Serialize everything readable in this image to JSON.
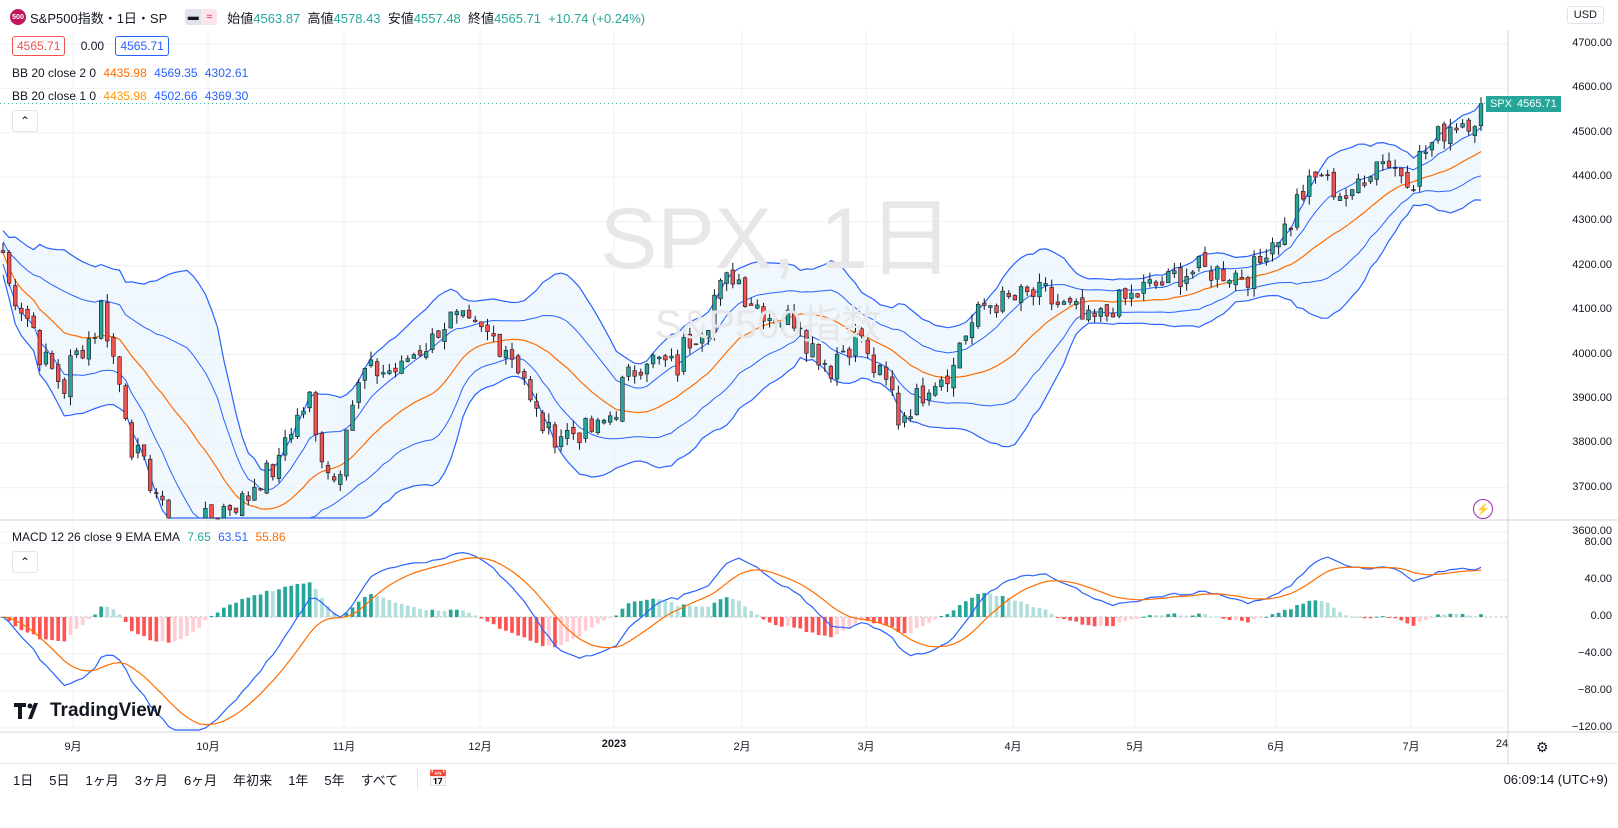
{
  "header": {
    "symbol_badge": "500",
    "title": "S&P500指数・1日・SP",
    "ohlc": {
      "open_label": "始値",
      "open": "4563.87",
      "high_label": "高値",
      "high": "4578.43",
      "low_label": "安値",
      "low": "4557.48",
      "close_label": "終値",
      "close": "4565.71",
      "change": "+10.74 (+0.24%)"
    }
  },
  "order_row": {
    "sell": "4565.71",
    "spread": "0.00",
    "buy": "4565.71"
  },
  "indicators": {
    "bb2": {
      "label": "BB 20 close 2 0",
      "basis": "4435.98",
      "upper": "4569.35",
      "lower": "4302.61"
    },
    "bb1": {
      "label": "BB 20 close 1 0",
      "basis": "4435.98",
      "upper": "4502.66",
      "lower": "4369.30"
    },
    "macd": {
      "label": "MACD 12 26 close 9 EMA EMA",
      "hist": "7.65",
      "macd": "63.51",
      "signal": "55.86"
    }
  },
  "watermark": {
    "main": "SPX, 1日",
    "sub": "S&P500指数"
  },
  "price_axis": {
    "currency": "USD",
    "labels": [
      "4700.00",
      "4600.00",
      "4500.00",
      "4400.00",
      "4300.00",
      "4200.00",
      "4100.00",
      "4000.00",
      "3900.00",
      "3800.00",
      "3700.00",
      "3600.00"
    ],
    "last_price_symbol": "SPX",
    "last_price": "4565.71"
  },
  "macd_axis": {
    "labels": [
      "80.00",
      "40.00",
      "0.00",
      "−40.00",
      "−80.00",
      "−120.00"
    ]
  },
  "time_axis": {
    "labels": [
      "9月",
      "10月",
      "11月",
      "12月",
      "2023",
      "2月",
      "3月",
      "4月",
      "5月",
      "6月",
      "7月",
      "24"
    ]
  },
  "bottom_bar": {
    "ranges": [
      "1日",
      "5日",
      "1ヶ月",
      "3ヶ月",
      "6ヶ月",
      "年初来",
      "1年",
      "5年",
      "すべて"
    ],
    "clock": "06:09:14 (UTC+9)"
  },
  "brand": "TradingView",
  "colors": {
    "up": "#26a69a",
    "down": "#ef5350",
    "bb_band": "#2962ff",
    "bb_basis": "#ff6d00",
    "bb1_basis": "#ff9800",
    "band_fill": "#e3f2fd"
  },
  "chart_data": {
    "type": "candlestick",
    "x_dates": [
      "9月",
      "10月",
      "11月",
      "12月",
      "2023",
      "2月",
      "3月",
      "4月",
      "5月",
      "6月",
      "7月"
    ],
    "close_anchors": [
      [
        "2022-08-19",
        4230
      ],
      [
        "2022-08-26",
        4060
      ],
      [
        "2022-09-02",
        3925
      ],
      [
        "2022-09-12",
        4110
      ],
      [
        "2022-09-16",
        3875
      ],
      [
        "2022-09-23",
        3690
      ],
      [
        "2022-09-30",
        3585
      ],
      [
        "2022-10-07",
        3640
      ],
      [
        "2022-10-13",
        3670
      ],
      [
        "2022-10-21",
        3750
      ],
      [
        "2022-10-28",
        3900
      ],
      [
        "2022-11-03",
        3720
      ],
      [
        "2022-11-10",
        3960
      ],
      [
        "2022-11-18",
        3965
      ],
      [
        "2022-11-30",
        4080
      ],
      [
        "2022-12-13",
        4020
      ],
      [
        "2022-12-22",
        3820
      ],
      [
        "2023-01-03",
        3830
      ],
      [
        "2023-01-13",
        3999
      ],
      [
        "2023-01-20",
        3970
      ],
      [
        "2023-02-02",
        4180
      ],
      [
        "2023-02-10",
        4090
      ],
      [
        "2023-02-17",
        4080
      ],
      [
        "2023-02-24",
        3970
      ],
      [
        "2023-03-03",
        4045
      ],
      [
        "2023-03-13",
        3855
      ],
      [
        "2023-03-17",
        3916
      ],
      [
        "2023-03-24",
        3970
      ],
      [
        "2023-03-31",
        4109
      ],
      [
        "2023-04-14",
        4137
      ],
      [
        "2023-04-25",
        4071
      ],
      [
        "2023-05-05",
        4136
      ],
      [
        "2023-05-19",
        4192
      ],
      [
        "2023-05-31",
        4180
      ],
      [
        "2023-06-09",
        4298
      ],
      [
        "2023-06-16",
        4410
      ],
      [
        "2023-06-23",
        4348
      ],
      [
        "2023-06-30",
        4450
      ],
      [
        "2023-07-07",
        4398
      ],
      [
        "2023-07-14",
        4505
      ],
      [
        "2023-07-21",
        4536
      ],
      [
        "2023-07-24",
        4565.71
      ]
    ],
    "bb": {
      "period": 20,
      "source": "close",
      "stddev": [
        2,
        1
      ],
      "last_basis": 4435.98,
      "last_upper2": 4569.35,
      "last_lower2": 4302.61,
      "last_upper1": 4502.66,
      "last_lower1": 4369.3
    },
    "macd": {
      "fast": 12,
      "slow": 26,
      "signal": 9,
      "last_hist": 7.65,
      "last_macd": 63.51,
      "last_signal": 55.86
    },
    "ylim_price": [
      3600,
      4700
    ],
    "ylim_macd": [
      -120,
      80
    ],
    "grid": true
  }
}
